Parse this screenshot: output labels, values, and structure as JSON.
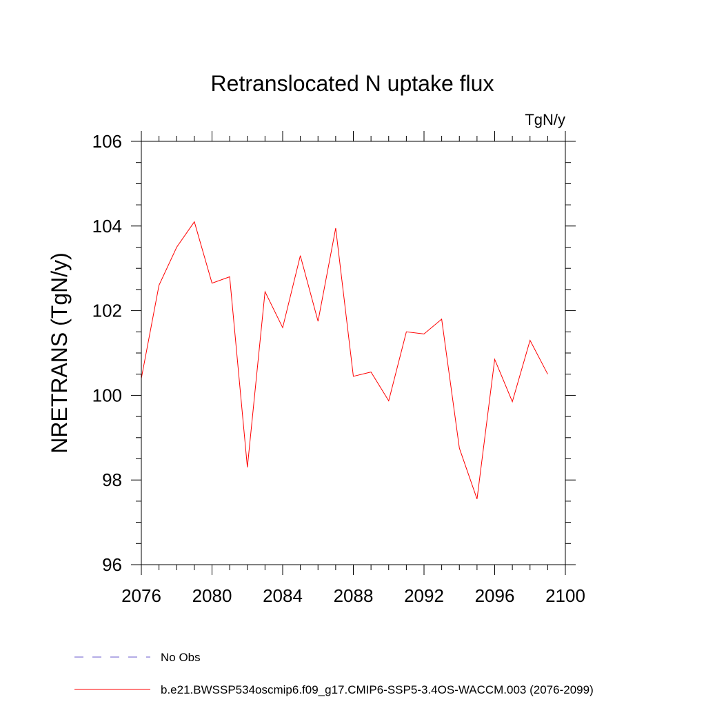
{
  "chart_data": {
    "type": "line",
    "title": "Retranslocated N uptake flux",
    "units_label": "TgN/y",
    "ylabel": "NRETRANS  (TgN/y)",
    "xlabel": "",
    "xlim": [
      2076,
      2100
    ],
    "ylim": [
      96,
      106
    ],
    "x_ticks": [
      2076,
      2080,
      2084,
      2088,
      2092,
      2096,
      2100
    ],
    "y_ticks": [
      96,
      98,
      100,
      102,
      104,
      106
    ],
    "grid": false,
    "legend_position": "bottom-left",
    "series": [
      {
        "name": "b.e21.BWSSP534oscmip6.f09_g17.CMIP6-SSP5-3.4OS-WACCM.003 (2076-2099)",
        "color": "#ff0000",
        "style": "solid",
        "x": [
          2076,
          2077,
          2078,
          2079,
          2080,
          2081,
          2082,
          2083,
          2084,
          2085,
          2086,
          2087,
          2088,
          2089,
          2090,
          2091,
          2092,
          2093,
          2094,
          2095,
          2096,
          2097,
          2098,
          2099
        ],
        "y": [
          100.4,
          102.6,
          103.5,
          104.1,
          102.65,
          102.8,
          98.3,
          102.45,
          101.6,
          103.3,
          101.75,
          103.95,
          100.45,
          100.55,
          99.87,
          101.5,
          101.45,
          101.8,
          98.75,
          97.55,
          100.85,
          99.85,
          101.3,
          100.5
        ]
      }
    ],
    "legend": [
      {
        "label": "No Obs",
        "color": "#6a5acd",
        "style": "dashed"
      },
      {
        "label": "b.e21.BWSSP534oscmip6.f09_g17.CMIP6-SSP5-3.4OS-WACCM.003 (2076-2099)",
        "color": "#ff0000",
        "style": "solid"
      }
    ]
  }
}
